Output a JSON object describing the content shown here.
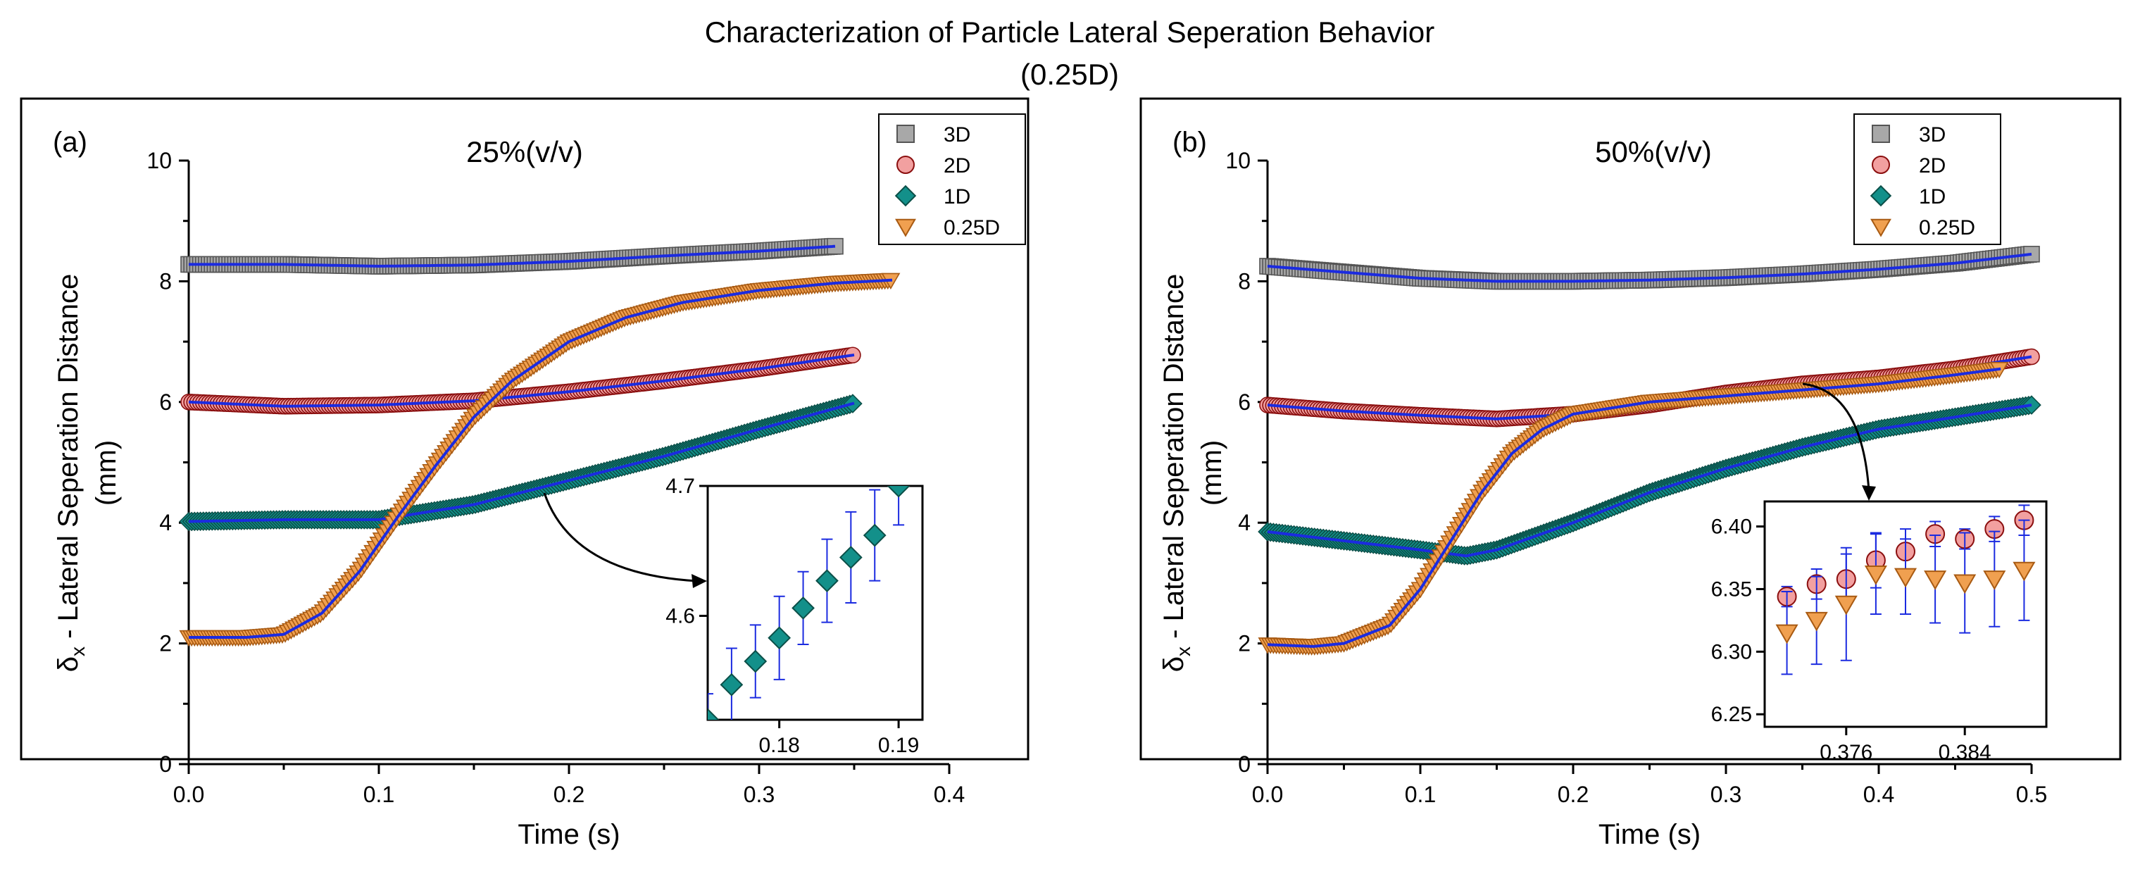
{
  "figure": {
    "title_line1": "Characterization of Particle Lateral Seperation Behavior",
    "title_line2": "(0.25D)"
  },
  "colors": {
    "3D": "#a8a8a8",
    "2D": "#f2a0a0",
    "1D": "#13908a",
    "0.25D": "#f0a050",
    "3D_edge": "#555555",
    "2D_edge": "#8b0f0f",
    "1D_edge": "#0b4f48",
    "0.25D_edge": "#a85a12",
    "fit": "#1b2be0",
    "errorbar": "#1b2be0"
  },
  "chart_data": [
    {
      "type": "scatter",
      "panel_label": "(a)",
      "annotation": "25%(v/v)",
      "xlabel": "Time (s)",
      "ylabel_symbol": "δ",
      "ylabel_sub": "x",
      "ylabel_rest": " - Lateral Seperation Distance",
      "ylabel_units": "(mm)",
      "xlim": [
        0,
        0.4
      ],
      "ylim": [
        0,
        10
      ],
      "xticks": [
        0,
        0.1,
        0.2,
        0.3,
        0.4
      ],
      "xtick_labels": [
        "0.0",
        "0.1",
        "0.2",
        "0.3",
        "0.4"
      ],
      "yticks": [
        0,
        2,
        4,
        6,
        8,
        10
      ],
      "ytick_labels": [
        "0",
        "2",
        "4",
        "6",
        "8",
        "10"
      ],
      "legend": [
        "3D",
        "2D",
        "1D",
        "0.25D"
      ],
      "series": [
        {
          "name": "3D",
          "marker": "square",
          "x": [
            0,
            0.05,
            0.1,
            0.15,
            0.2,
            0.25,
            0.3,
            0.34
          ],
          "y": [
            8.28,
            8.28,
            8.25,
            8.27,
            8.33,
            8.42,
            8.5,
            8.58
          ]
        },
        {
          "name": "2D",
          "marker": "circle",
          "x": [
            0,
            0.05,
            0.1,
            0.15,
            0.2,
            0.25,
            0.3,
            0.35
          ],
          "y": [
            6.0,
            5.93,
            5.95,
            6.02,
            6.17,
            6.35,
            6.55,
            6.78
          ]
        },
        {
          "name": "1D",
          "marker": "diamond",
          "x": [
            0,
            0.05,
            0.1,
            0.15,
            0.2,
            0.25,
            0.3,
            0.35
          ],
          "y": [
            4.02,
            4.05,
            4.05,
            4.3,
            4.7,
            5.1,
            5.55,
            5.98
          ]
        },
        {
          "name": "0.25D",
          "marker": "triangle",
          "x": [
            0,
            0.03,
            0.05,
            0.07,
            0.09,
            0.11,
            0.13,
            0.15,
            0.17,
            0.2,
            0.23,
            0.26,
            0.3,
            0.34,
            0.37
          ],
          "y": [
            2.1,
            2.1,
            2.15,
            2.5,
            3.2,
            4.1,
            4.95,
            5.75,
            6.35,
            7.0,
            7.4,
            7.65,
            7.85,
            7.97,
            8.02
          ]
        }
      ],
      "inset": {
        "xlim": [
          0.174,
          0.192
        ],
        "ylim": [
          4.52,
          4.7
        ],
        "xticks": [
          0.18,
          0.19
        ],
        "xtick_labels": [
          "0.18",
          "0.19"
        ],
        "yticks": [
          4.6,
          4.7
        ],
        "ytick_labels": [
          "4.6",
          "4.7"
        ],
        "series": [
          {
            "name": "1D",
            "marker": "diamond",
            "x": [
              0.174,
              0.176,
              0.178,
              0.18,
              0.182,
              0.184,
              0.186,
              0.188,
              0.19
            ],
            "y": [
              4.52,
              4.547,
              4.565,
              4.583,
              4.606,
              4.627,
              4.645,
              4.662,
              4.7
            ],
            "err": [
              0.02,
              0.028,
              0.028,
              0.032,
              0.028,
              0.032,
              0.035,
              0.035,
              0.03
            ]
          }
        ]
      }
    },
    {
      "type": "scatter",
      "panel_label": "(b)",
      "annotation": "50%(v/v)",
      "xlabel": "Time (s)",
      "ylabel_symbol": "δ",
      "ylabel_sub": "x",
      "ylabel_rest": " - Lateral Seperation Distance",
      "ylabel_units": "(mm)",
      "xlim": [
        0,
        0.5
      ],
      "ylim": [
        0,
        10
      ],
      "xticks": [
        0,
        0.1,
        0.2,
        0.3,
        0.4,
        0.5
      ],
      "xtick_labels": [
        "0.0",
        "0.1",
        "0.2",
        "0.3",
        "0.4",
        "0.5"
      ],
      "yticks": [
        0,
        2,
        4,
        6,
        8,
        10
      ],
      "ytick_labels": [
        "0",
        "2",
        "4",
        "6",
        "8",
        "10"
      ],
      "legend": [
        "3D",
        "2D",
        "1D",
        "0.25D"
      ],
      "series": [
        {
          "name": "3D",
          "marker": "square",
          "x": [
            0,
            0.05,
            0.1,
            0.15,
            0.2,
            0.25,
            0.3,
            0.35,
            0.4,
            0.45,
            0.5
          ],
          "y": [
            8.25,
            8.15,
            8.05,
            8.0,
            8.0,
            8.02,
            8.06,
            8.12,
            8.2,
            8.3,
            8.45
          ]
        },
        {
          "name": "2D",
          "marker": "circle",
          "x": [
            0,
            0.05,
            0.1,
            0.15,
            0.2,
            0.25,
            0.3,
            0.35,
            0.4,
            0.45,
            0.5
          ],
          "y": [
            5.95,
            5.85,
            5.78,
            5.72,
            5.8,
            5.95,
            6.15,
            6.3,
            6.4,
            6.55,
            6.75
          ]
        },
        {
          "name": "1D",
          "marker": "diamond",
          "x": [
            0,
            0.05,
            0.1,
            0.13,
            0.15,
            0.2,
            0.25,
            0.3,
            0.35,
            0.4,
            0.45,
            0.5
          ],
          "y": [
            3.85,
            3.7,
            3.55,
            3.45,
            3.55,
            4.0,
            4.5,
            4.9,
            5.25,
            5.55,
            5.75,
            5.95
          ]
        },
        {
          "name": "0.25D",
          "marker": "triangle",
          "x": [
            0,
            0.03,
            0.05,
            0.08,
            0.1,
            0.12,
            0.14,
            0.16,
            0.18,
            0.2,
            0.25,
            0.3,
            0.35,
            0.4,
            0.45,
            0.48
          ],
          "y": [
            1.98,
            1.95,
            2.0,
            2.3,
            2.9,
            3.7,
            4.5,
            5.15,
            5.55,
            5.8,
            6.0,
            6.1,
            6.2,
            6.3,
            6.45,
            6.55
          ]
        }
      ],
      "inset": {
        "xlim": [
          0.3705,
          0.3895
        ],
        "ylim": [
          6.24,
          6.42
        ],
        "xticks": [
          0.376,
          0.384
        ],
        "xtick_labels": [
          "0.376",
          "0.384"
        ],
        "yticks": [
          6.25,
          6.3,
          6.35,
          6.4
        ],
        "ytick_labels": [
          "6.25",
          "6.30",
          "6.35",
          "6.40"
        ],
        "series": [
          {
            "name": "2D",
            "marker": "circle",
            "x": [
              0.372,
              0.374,
              0.376,
              0.378,
              0.38,
              0.382,
              0.384,
              0.386,
              0.388
            ],
            "y": [
              6.344,
              6.354,
              6.358,
              6.373,
              6.38,
              6.394,
              6.39,
              6.398,
              6.405
            ],
            "err": [
              0.008,
              0.012,
              0.02,
              0.022,
              0.018,
              0.01,
              0.008,
              0.01,
              0.012
            ]
          },
          {
            "name": "0.25D",
            "marker": "triangle",
            "x": [
              0.372,
              0.374,
              0.376,
              0.378,
              0.38,
              0.382,
              0.384,
              0.386,
              0.388
            ],
            "y": [
              6.315,
              6.325,
              6.338,
              6.362,
              6.36,
              6.358,
              6.355,
              6.358,
              6.365
            ],
            "err": [
              0.033,
              0.035,
              0.045,
              0.032,
              0.03,
              0.035,
              0.04,
              0.038,
              0.04
            ]
          }
        ]
      }
    }
  ]
}
